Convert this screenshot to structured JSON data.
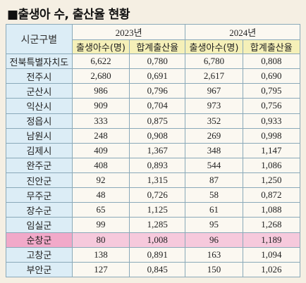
{
  "title": "■출생아 수, 출산율 현황",
  "header": {
    "region_label": "시군구별",
    "years": [
      "2023년",
      "2024년"
    ],
    "births_label": "출생아수(명)",
    "tfr_label": "합계출산율"
  },
  "rows": [
    {
      "region": "전북특별자치도",
      "b2023": "6,622",
      "t2023": "0,780",
      "b2024": "6,780",
      "t2024": "0,808"
    },
    {
      "region": "전주시",
      "b2023": "2,680",
      "t2023": "0,691",
      "b2024": "2,617",
      "t2024": "0,690"
    },
    {
      "region": "군산시",
      "b2023": "986",
      "t2023": "0,796",
      "b2024": "967",
      "t2024": "0,795"
    },
    {
      "region": "익산시",
      "b2023": "909",
      "t2023": "0,704",
      "b2024": "973",
      "t2024": "0,756"
    },
    {
      "region": "정읍시",
      "b2023": "333",
      "t2023": "0,875",
      "b2024": "352",
      "t2024": "0,933"
    },
    {
      "region": "남원시",
      "b2023": "248",
      "t2023": "0,908",
      "b2024": "269",
      "t2024": "0,998"
    },
    {
      "region": "김제시",
      "b2023": "409",
      "t2023": "1,367",
      "b2024": "348",
      "t2024": "1,147"
    },
    {
      "region": "완주군",
      "b2023": "408",
      "t2023": "0,893",
      "b2024": "544",
      "t2024": "1,086"
    },
    {
      "region": "진안군",
      "b2023": "92",
      "t2023": "1,315",
      "b2024": "87",
      "t2024": "1,250"
    },
    {
      "region": "무주군",
      "b2023": "48",
      "t2023": "0,726",
      "b2024": "58",
      "t2024": "0,872"
    },
    {
      "region": "장수군",
      "b2023": "65",
      "t2023": "1,125",
      "b2024": "61",
      "t2024": "1,088"
    },
    {
      "region": "임실군",
      "b2023": "99",
      "t2023": "1,285",
      "b2024": "95",
      "t2024": "1,268"
    },
    {
      "region": "순창군",
      "b2023": "80",
      "t2023": "1,008",
      "b2024": "96",
      "t2024": "1,189",
      "highlight": true
    },
    {
      "region": "고창군",
      "b2023": "138",
      "t2023": "0,891",
      "b2024": "163",
      "t2024": "1,094"
    },
    {
      "region": "부안군",
      "b2023": "127",
      "t2023": "0,845",
      "b2024": "150",
      "t2024": "1,026"
    }
  ],
  "colors": {
    "region_bg": "#dcedf6",
    "subheader_bg": "#f5f0b8",
    "highlight_bg": "#f6c9dc",
    "border": "#8aa9b9"
  }
}
